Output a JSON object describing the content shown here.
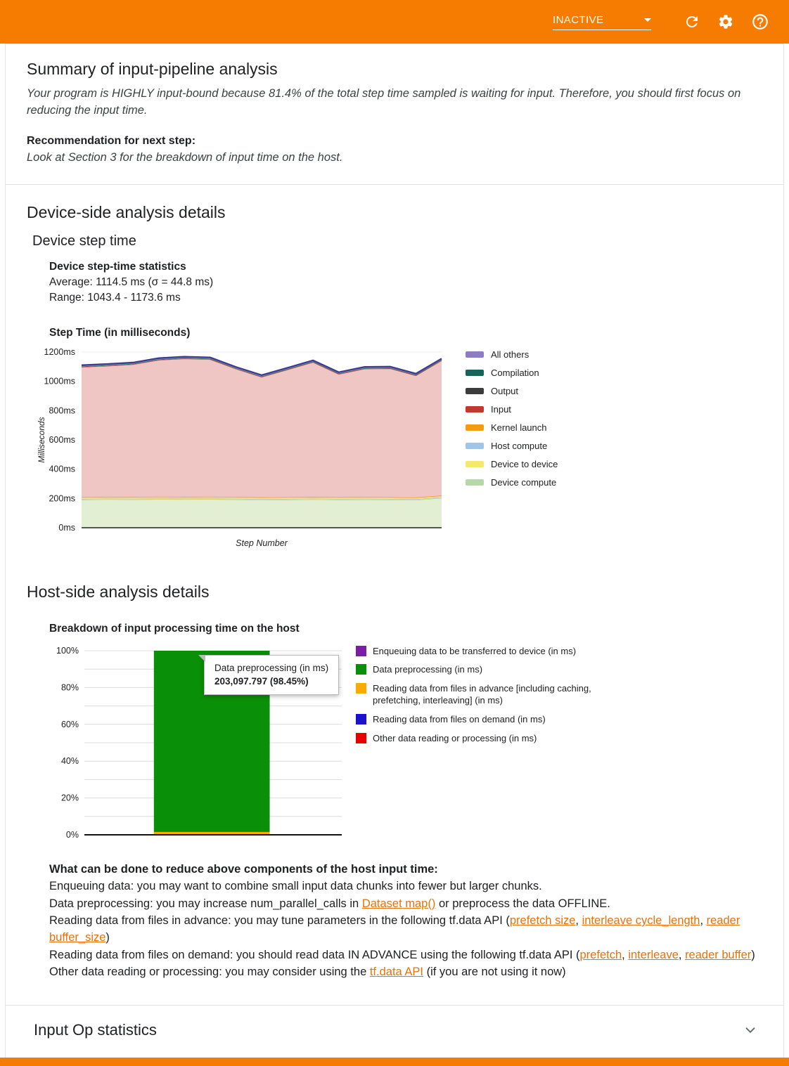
{
  "header": {
    "status_label": "INACTIVE"
  },
  "summary": {
    "title": "Summary of input-pipeline analysis",
    "body": "Your program is HIGHLY input-bound because 81.4% of the total step time sampled is waiting for input. Therefore, you should first focus on reducing the input time.",
    "recommendation_label": "Recommendation for next step:",
    "recommendation_text": "Look at Section 3 for the breakdown of input time on the host."
  },
  "device_side": {
    "title": "Device-side analysis details",
    "subtitle": "Device step time",
    "stats_title": "Device step-time statistics",
    "stats_average": "Average: 1114.5 ms (σ = 44.8 ms)",
    "stats_range": "Range: 1043.4 - 1173.6 ms",
    "chart_title": "Step Time (in milliseconds)"
  },
  "host_side": {
    "title": "Host-side analysis details",
    "chart_title": "Breakdown of input processing time on the host",
    "tooltip_line1": "Data preprocessing (in ms)",
    "tooltip_line2": "203,097.797 (98.45%)",
    "advice_title": "What can be done to reduce above components of the host input time:",
    "advice_lines": [
      [
        {
          "t": "Enqueuing data: you may want to combine small input data chunks into fewer but larger chunks."
        }
      ],
      [
        {
          "t": "Data preprocessing: you may increase num_parallel_calls in "
        },
        {
          "t": "Dataset map()",
          "link": true
        },
        {
          "t": " or preprocess the data OFFLINE."
        }
      ],
      [
        {
          "t": "Reading data from files in advance: you may tune parameters in the following tf.data API ("
        },
        {
          "t": "prefetch size",
          "link": true
        },
        {
          "t": ", "
        },
        {
          "t": "interleave cycle_length",
          "link": true
        },
        {
          "t": ", "
        },
        {
          "t": "reader buffer_size",
          "link": true
        },
        {
          "t": ")"
        }
      ],
      [
        {
          "t": "Reading data from files on demand: you should read data IN ADVANCE using the following tf.data API ("
        },
        {
          "t": "prefetch",
          "link": true
        },
        {
          "t": ", "
        },
        {
          "t": "interleave",
          "link": true
        },
        {
          "t": ", "
        },
        {
          "t": "reader buffer",
          "link": true
        },
        {
          "t": ")"
        }
      ],
      [
        {
          "t": "Other data reading or processing: you may consider using the "
        },
        {
          "t": "tf.data API",
          "link": true
        },
        {
          "t": " (if you are not using it now)"
        }
      ]
    ]
  },
  "input_op": {
    "title": "Input Op statistics"
  },
  "chart_data": [
    {
      "type": "area",
      "title": "Step Time (in milliseconds)",
      "xlabel": "Step Number",
      "ylabel": "Milliseconds",
      "ylim": [
        0,
        1200
      ],
      "ytick_step": 200,
      "ytick_suffix": "ms",
      "x": [
        0,
        1,
        2,
        3,
        4,
        5,
        6,
        7,
        8,
        9,
        10,
        11,
        12,
        13,
        14
      ],
      "series": [
        {
          "name": "Device compute",
          "fill": "#e3efd3",
          "stroke": "#a8c97f",
          "lw": 1.2,
          "values": [
            192,
            194,
            193,
            195,
            194,
            195,
            193,
            191,
            192,
            194,
            192,
            193,
            192,
            190,
            203
          ]
        },
        {
          "name": "Device to device",
          "fill": "#fef7b2",
          "stroke": "#f5e96a",
          "lw": 1.2,
          "values": [
            3,
            3,
            3,
            3,
            3,
            3,
            3,
            3,
            3,
            3,
            3,
            3,
            3,
            3,
            3
          ]
        },
        {
          "name": "Host compute",
          "fill": "#cfe6f8",
          "stroke": "#9fc5e8",
          "lw": 1.2,
          "values": [
            2,
            2,
            2,
            2,
            2,
            2,
            2,
            2,
            2,
            2,
            2,
            2,
            2,
            2,
            2
          ]
        },
        {
          "name": "Kernel launch",
          "fill": "#fcd9a8",
          "stroke": "#f39c12",
          "lw": 1.6,
          "values": [
            12,
            12,
            12,
            12,
            12,
            12,
            12,
            12,
            12,
            12,
            12,
            12,
            12,
            12,
            12
          ]
        },
        {
          "name": "Input",
          "fill": "#efc6c4",
          "stroke": "#cc4b43",
          "lw": 1.2,
          "values": [
            888,
            894,
            905,
            933,
            944,
            938,
            875,
            821,
            870,
            919,
            840,
            875,
            878,
            832,
            922
          ]
        },
        {
          "name": "Output",
          "fill": "#cccccc",
          "stroke": "#444444",
          "lw": 1.0,
          "values": [
            3,
            3,
            3,
            3,
            3,
            3,
            3,
            3,
            3,
            3,
            3,
            3,
            3,
            3,
            3
          ]
        },
        {
          "name": "Compilation",
          "fill": "#bfe0da",
          "stroke": "#1f6f63",
          "lw": 1.0,
          "values": [
            2,
            2,
            2,
            2,
            2,
            2,
            2,
            2,
            2,
            2,
            2,
            2,
            2,
            2,
            2
          ]
        },
        {
          "name": "All others",
          "fill": "#c5b8e8",
          "stroke": "#3d3c8f",
          "lw": 2.4,
          "values": [
            8,
            8,
            8,
            8,
            8,
            8,
            8,
            8,
            8,
            8,
            8,
            8,
            8,
            8,
            8
          ]
        }
      ],
      "legend": [
        {
          "label": "All others",
          "color": "#8e7cc3"
        },
        {
          "label": "Compilation",
          "color": "#16645a"
        },
        {
          "label": "Output",
          "color": "#3c3c3c"
        },
        {
          "label": "Input",
          "color": "#c0392b"
        },
        {
          "label": "Kernel launch",
          "color": "#f39c12"
        },
        {
          "label": "Host compute",
          "color": "#9fc5e8"
        },
        {
          "label": "Device to device",
          "color": "#f5e96a"
        },
        {
          "label": "Device compute",
          "color": "#b6d7a8"
        }
      ],
      "legend_position": "right",
      "grid": true
    },
    {
      "type": "bar",
      "title": "Breakdown of input processing time on the host",
      "ylim": [
        0,
        100
      ],
      "ytick_step": 20,
      "grid_step": 10,
      "ytick_suffix": "%",
      "bar_segments": [
        {
          "name": "Reading data from files in advance [including caching, prefetching, interleaving] (in ms)",
          "pct": 1.55,
          "color": "#f9ab00"
        },
        {
          "name": "Data preprocessing (in ms)",
          "pct": 98.45,
          "color": "#0a8f08",
          "value_label": "203,097.797"
        }
      ],
      "legend": [
        {
          "label": "Enqueuing data to be transferred to device (in ms)",
          "color": "#7b1fa2"
        },
        {
          "label": "Data preprocessing (in ms)",
          "color": "#0a8f08"
        },
        {
          "label": "Reading data from files in advance [including caching, prefetching, interleaving] (in ms)",
          "color": "#f9ab00"
        },
        {
          "label": "Reading data from files on demand (in ms)",
          "color": "#1a12ce"
        },
        {
          "label": "Other data reading or processing (in ms)",
          "color": "#e60000"
        }
      ],
      "legend_position": "right",
      "grid": true
    }
  ]
}
